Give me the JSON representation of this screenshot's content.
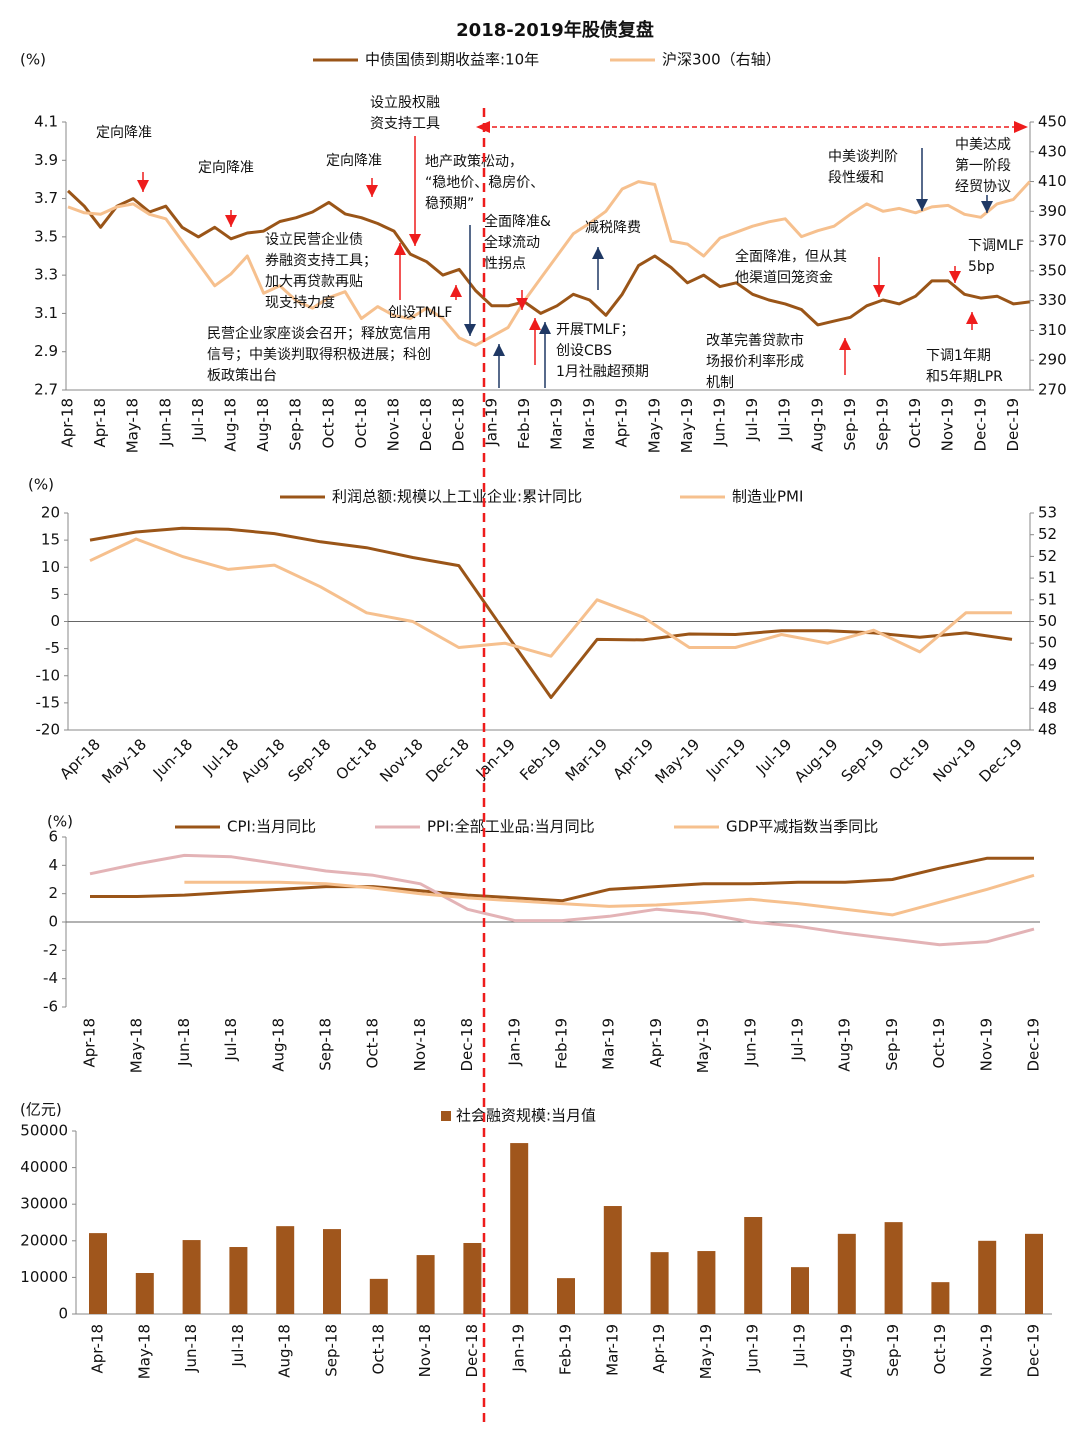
{
  "title": "2018-2019年股债复盘",
  "chart_data": [
    {
      "type": "line",
      "ylabel": "(%)",
      "categories": [
        "Apr-18",
        null,
        "Apr-18",
        null,
        "May-18",
        null,
        "Jun-18",
        null,
        "Jul-18",
        null,
        "Aug-18",
        null,
        "Aug-18",
        null,
        "Sep-18",
        null,
        "Oct-18",
        null,
        "Oct-18",
        null,
        "Nov-18",
        null,
        "Dec-18",
        null,
        "Dec-18",
        null,
        "Jan-19",
        null,
        "Feb-19",
        null,
        "Mar-19",
        null,
        "Mar-19",
        null,
        "Apr-19",
        null,
        "May-19",
        null,
        "May-19",
        null,
        "Jun-19",
        null,
        "Jul-19",
        null,
        "Jul-19",
        null,
        "Aug-19",
        null,
        "Sep-19",
        null,
        "Sep-19",
        null,
        "Oct-19",
        null,
        "Nov-19",
        null,
        "Dec-19",
        null,
        "Dec-19",
        null
      ],
      "series": [
        {
          "name": "中债国债到期收益率:10年",
          "color": "#9a5518",
          "values": [
            3.74,
            3.66,
            3.55,
            3.66,
            3.7,
            3.63,
            3.66,
            3.55,
            3.5,
            3.55,
            3.49,
            3.52,
            3.53,
            3.58,
            3.6,
            3.63,
            3.68,
            3.62,
            3.6,
            3.57,
            3.53,
            3.41,
            3.37,
            3.3,
            3.33,
            3.22,
            3.14,
            3.14,
            3.16,
            3.1,
            3.14,
            3.2,
            3.17,
            3.09,
            3.2,
            3.35,
            3.4,
            3.34,
            3.26,
            3.3,
            3.24,
            3.26,
            3.2,
            3.17,
            3.15,
            3.12,
            3.04,
            3.06,
            3.08,
            3.14,
            3.17,
            3.15,
            3.19,
            3.27,
            3.27,
            3.2,
            3.18,
            3.19,
            3.15,
            3.16
          ]
        },
        {
          "name": "沪深300（右轴）",
          "color": "#f6c08e",
          "axis": "y2",
          "values": [
            393,
            389,
            388,
            393,
            395,
            388,
            385,
            370,
            355,
            340,
            348,
            360,
            335,
            340,
            330,
            325,
            332,
            336,
            318,
            326,
            320,
            318,
            325,
            318,
            305,
            300,
            306,
            312,
            330,
            345,
            360,
            375,
            382,
            390,
            405,
            410,
            408,
            370,
            368,
            360,
            372,
            376,
            380,
            383,
            385,
            373,
            377,
            380,
            388,
            395,
            390,
            392,
            389,
            393,
            394,
            388,
            386,
            395,
            398,
            410
          ]
        }
      ],
      "ylim": [
        2.7,
        4.1
      ],
      "yticks": [
        2.7,
        2.9,
        3.1,
        3.3,
        3.5,
        3.7,
        3.9,
        4.1
      ],
      "y2lim": [
        270,
        450
      ],
      "y2ticks": [
        270,
        290,
        310,
        330,
        350,
        370,
        390,
        410,
        430,
        450
      ],
      "annotations": [
        [
          "定向降准"
        ],
        [
          "定向降准"
        ],
        [
          "定向降准"
        ],
        [
          "设立股权融",
          "资支持工具"
        ],
        [
          "地产政策松动，",
          "“稳地价、稳房价、",
          "稳预期”"
        ],
        [
          "设立民营企业债",
          "券融资支持工具；",
          "加大再贷款再贴",
          "现支持力度"
        ],
        [
          "创设TMLF"
        ],
        [
          "民营企业家座谈会召开；释放宽信用",
          "信号；中美谈判取得积极进展；科创",
          "板政策出台"
        ],
        [
          "全面降准&",
          "全球流动",
          "性拐点"
        ],
        [
          "减税降费"
        ],
        [
          "开展TMLF；",
          "创设CBS",
          "1月社融超预期"
        ],
        [
          "中美谈判阶",
          "段性缓和"
        ],
        [
          "中美达成",
          "第一阶段",
          "经贸协议"
        ],
        [
          "全面降准，但从其",
          "他渠道回笼资金"
        ],
        [
          "改革完善贷款市",
          "场报价利率形成",
          "机制"
        ],
        [
          "下调MLF",
          "5bp"
        ],
        [
          "下调1年期",
          "和5年期LPR"
        ]
      ]
    },
    {
      "type": "line",
      "ylabel": "(%)",
      "categories": [
        "Apr-18",
        "May-18",
        "Jun-18",
        "Jul-18",
        "Aug-18",
        "Sep-18",
        "Oct-18",
        "Nov-18",
        "Dec-18",
        "Jan-19",
        "Feb-19",
        "Mar-19",
        "Apr-19",
        "May-19",
        "Jun-19",
        "Jul-19",
        "Aug-19",
        "Sep-19",
        "Oct-19",
        "Nov-19",
        "Dec-19"
      ],
      "series": [
        {
          "name": "利润总额:规模以上工业企业:累计同比",
          "color": "#9a5518",
          "values": [
            15.0,
            16.5,
            17.2,
            17.0,
            16.2,
            14.7,
            13.6,
            11.8,
            10.3,
            -1.9,
            -14.0,
            -3.3,
            -3.4,
            -2.3,
            -2.4,
            -1.7,
            -1.7,
            -2.1,
            -2.9,
            -2.1,
            -3.3
          ]
        },
        {
          "name": "制造业PMI",
          "color": "#f6c08e",
          "axis": "y2",
          "values": [
            51.4,
            51.9,
            51.5,
            51.2,
            51.3,
            50.8,
            50.2,
            50.0,
            49.4,
            49.5,
            49.2,
            50.5,
            50.1,
            49.4,
            49.4,
            49.7,
            49.5,
            49.8,
            49.3,
            50.2,
            50.2
          ]
        }
      ],
      "ylim": [
        -20,
        20
      ],
      "yticks": [
        -20,
        -15,
        -10,
        -5,
        0,
        5,
        10,
        15,
        20
      ],
      "y2lim": [
        47.5,
        52.5
      ],
      "y2ticks": [
        {
          "value": 47.5,
          "label": "48"
        },
        48,
        {
          "value": 48.5,
          "label": "49"
        },
        49,
        {
          "value": 49.5,
          "label": "50"
        },
        50,
        {
          "value": 50.5,
          "label": "51"
        },
        51,
        {
          "value": 51.5,
          "label": "52"
        },
        52,
        {
          "value": 52.5,
          "label": "53"
        }
      ]
    },
    {
      "type": "line",
      "ylabel": "(%)",
      "categories": [
        "Apr-18",
        "May-18",
        "Jun-18",
        "Jul-18",
        "Aug-18",
        "Sep-18",
        "Oct-18",
        "Nov-18",
        "Dec-18",
        "Jan-19",
        "Feb-19",
        "Mar-19",
        "Apr-19",
        "May-19",
        "Jun-19",
        "Jul-19",
        "Aug-19",
        "Sep-19",
        "Oct-19",
        "Nov-19",
        "Dec-19"
      ],
      "series": [
        {
          "name": "CPI:当月同比",
          "color": "#9a5518",
          "values": [
            1.8,
            1.8,
            1.9,
            2.1,
            2.3,
            2.5,
            2.5,
            2.2,
            1.9,
            1.7,
            1.5,
            2.3,
            2.5,
            2.7,
            2.7,
            2.8,
            2.8,
            3.0,
            3.8,
            4.5,
            4.5
          ]
        },
        {
          "name": "PPI:全部工业品:当月同比",
          "color": "#e3b3b6",
          "values": [
            3.4,
            4.1,
            4.7,
            4.6,
            4.1,
            3.6,
            3.3,
            2.7,
            0.9,
            0.1,
            0.1,
            0.4,
            0.9,
            0.6,
            0.0,
            -0.3,
            -0.8,
            -1.2,
            -1.6,
            -1.4,
            -0.5
          ]
        },
        {
          "name": "GDP平减指数当季同比",
          "color": "#f6c08e",
          "values": [
            null,
            null,
            2.8,
            2.8,
            2.8,
            2.7,
            2.4,
            2.0,
            1.7,
            1.5,
            1.3,
            1.1,
            1.2,
            1.4,
            1.6,
            1.3,
            0.9,
            0.5,
            1.4,
            2.3,
            3.3
          ]
        }
      ],
      "ylim": [
        -6,
        6
      ],
      "yticks": [
        -6,
        -4,
        -2,
        0,
        2,
        4,
        6
      ]
    },
    {
      "type": "bar",
      "ylabel": "(亿元)",
      "categories": [
        "Apr-18",
        "May-18",
        "Jun-18",
        "Jul-18",
        "Aug-18",
        "Sep-18",
        "Oct-18",
        "Nov-18",
        "Dec-18",
        "Jan-19",
        "Feb-19",
        "Mar-19",
        "Apr-19",
        "May-19",
        "Jun-19",
        "Jul-19",
        "Aug-19",
        "Sep-19",
        "Oct-19",
        "Nov-19",
        "Dec-19"
      ],
      "series": [
        {
          "name": "社会融资规模:当月值",
          "color": "#a0561c",
          "values": [
            22100,
            11200,
            20200,
            18300,
            24000,
            23200,
            9600,
            16100,
            19400,
            46700,
            9800,
            29500,
            16900,
            17200,
            26500,
            12800,
            21900,
            25100,
            8700,
            20000,
            21900
          ]
        }
      ],
      "ylim": [
        0,
        50000
      ],
      "yticks": [
        0,
        10000,
        20000,
        30000,
        40000,
        50000
      ]
    }
  ]
}
